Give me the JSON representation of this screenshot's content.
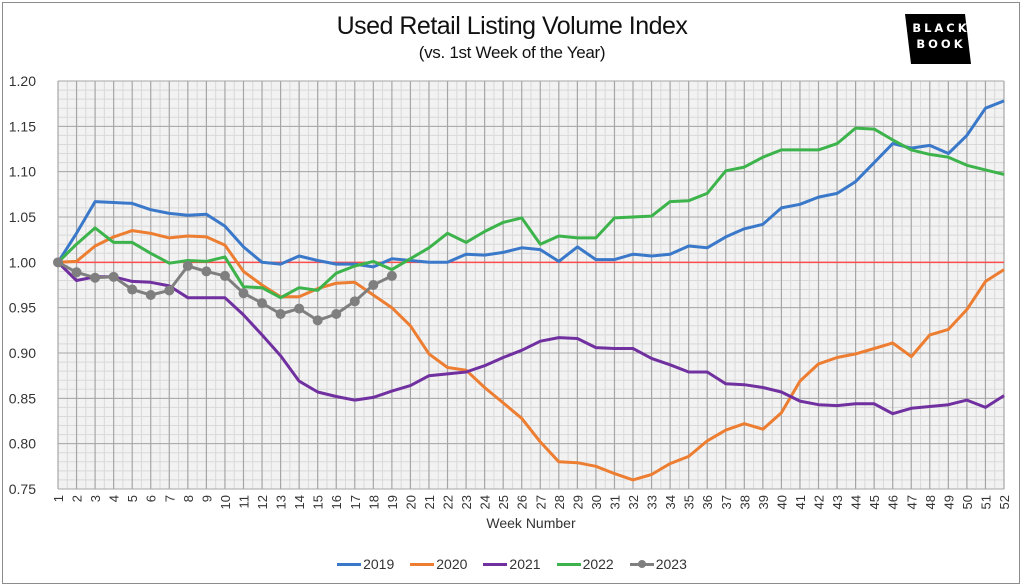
{
  "header": {
    "title": "Used Retail Listing Volume Index",
    "subtitle": "(vs. 1st Week of the Year)",
    "logo_line1": "BLACK",
    "logo_line2": "BOOK"
  },
  "colors": {
    "2019": "#3a78c9",
    "2020": "#ed7d31",
    "2021": "#7030a0",
    "2022": "#3cb44b",
    "2023": "#7f7f7f",
    "baseline": "#ff4c4c",
    "grid_major": "#a6a6a6",
    "grid_minor": "#d9d9d9",
    "plot_bg": "#f2f2f2"
  },
  "chart_data": {
    "type": "line",
    "title": "Used Retail Listing Volume Index",
    "subtitle": "(vs. 1st Week of the Year)",
    "xlabel": "Week Number",
    "ylabel": "",
    "ylim": [
      0.75,
      1.2
    ],
    "yticks": [
      "1.20",
      "1.15",
      "1.10",
      "1.05",
      "1.00",
      "0.95",
      "0.90",
      "0.85",
      "0.80",
      "0.75"
    ],
    "x": [
      1,
      2,
      3,
      4,
      5,
      6,
      7,
      8,
      9,
      10,
      11,
      12,
      13,
      14,
      15,
      16,
      17,
      18,
      19,
      20,
      21,
      22,
      23,
      24,
      25,
      26,
      27,
      28,
      29,
      30,
      31,
      32,
      33,
      34,
      35,
      36,
      37,
      38,
      39,
      40,
      41,
      42,
      43,
      44,
      45,
      46,
      47,
      48,
      49,
      50,
      51,
      52
    ],
    "baseline": 1.0,
    "legend_position": "bottom",
    "grid": true,
    "series": [
      {
        "name": "2019",
        "values": [
          1.0,
          1.032,
          1.067,
          1.066,
          1.065,
          1.058,
          1.054,
          1.052,
          1.053,
          1.04,
          1.017,
          1.0,
          0.998,
          1.007,
          1.002,
          0.998,
          0.998,
          0.995,
          1.004,
          1.002,
          1.0,
          1.0,
          1.009,
          1.008,
          1.011,
          1.016,
          1.014,
          1.001,
          1.017,
          1.003,
          1.003,
          1.009,
          1.007,
          1.009,
          1.018,
          1.016,
          1.028,
          1.037,
          1.042,
          1.06,
          1.064,
          1.072,
          1.076,
          1.089,
          1.11,
          1.131,
          1.126,
          1.129,
          1.12,
          1.14,
          1.17,
          1.178
        ]
      },
      {
        "name": "2020",
        "values": [
          1.0,
          1.001,
          1.018,
          1.028,
          1.035,
          1.032,
          1.027,
          1.029,
          1.028,
          1.019,
          0.99,
          0.975,
          0.962,
          0.962,
          0.971,
          0.977,
          0.978,
          0.964,
          0.95,
          0.93,
          0.899,
          0.884,
          0.881,
          0.862,
          0.845,
          0.828,
          0.802,
          0.78,
          0.779,
          0.775,
          0.767,
          0.76,
          0.766,
          0.778,
          0.786,
          0.803,
          0.815,
          0.822,
          0.816,
          0.834,
          0.869,
          0.888,
          0.895,
          0.899,
          0.905,
          0.911,
          0.896,
          0.92,
          0.926,
          0.948,
          0.979,
          0.992
        ]
      },
      {
        "name": "2021",
        "values": [
          1.0,
          0.98,
          0.984,
          0.984,
          0.979,
          0.978,
          0.974,
          0.961,
          0.961,
          0.961,
          0.942,
          0.92,
          0.897,
          0.869,
          0.857,
          0.852,
          0.848,
          0.851,
          0.858,
          0.864,
          0.875,
          0.877,
          0.879,
          0.886,
          0.895,
          0.903,
          0.913,
          0.917,
          0.916,
          0.906,
          0.905,
          0.905,
          0.894,
          0.887,
          0.879,
          0.879,
          0.866,
          0.865,
          0.862,
          0.857,
          0.847,
          0.843,
          0.842,
          0.844,
          0.844,
          0.833,
          0.839,
          0.841,
          0.843,
          0.848,
          0.84,
          0.853
        ]
      },
      {
        "name": "2022",
        "values": [
          1.0,
          1.02,
          1.038,
          1.022,
          1.022,
          1.01,
          0.999,
          1.002,
          1.001,
          1.006,
          0.973,
          0.972,
          0.961,
          0.972,
          0.969,
          0.988,
          0.996,
          1.001,
          0.992,
          1.004,
          1.016,
          1.032,
          1.022,
          1.034,
          1.044,
          1.049,
          1.02,
          1.029,
          1.027,
          1.027,
          1.049,
          1.05,
          1.051,
          1.067,
          1.068,
          1.076,
          1.101,
          1.105,
          1.116,
          1.124,
          1.124,
          1.124,
          1.131,
          1.148,
          1.147,
          1.135,
          1.124,
          1.119,
          1.116,
          1.107,
          1.102,
          1.097
        ]
      },
      {
        "name": "2023",
        "values": [
          1.0,
          0.989,
          0.983,
          0.984,
          0.97,
          0.964,
          0.969,
          0.996,
          0.99,
          0.985,
          0.966,
          0.955,
          0.943,
          0.949,
          0.936,
          0.943,
          0.957,
          0.975,
          0.985
        ]
      }
    ]
  },
  "legend": [
    {
      "label": "2019",
      "marker": false
    },
    {
      "label": "2020",
      "marker": false
    },
    {
      "label": "2021",
      "marker": false
    },
    {
      "label": "2022",
      "marker": false
    },
    {
      "label": "2023",
      "marker": true
    }
  ]
}
